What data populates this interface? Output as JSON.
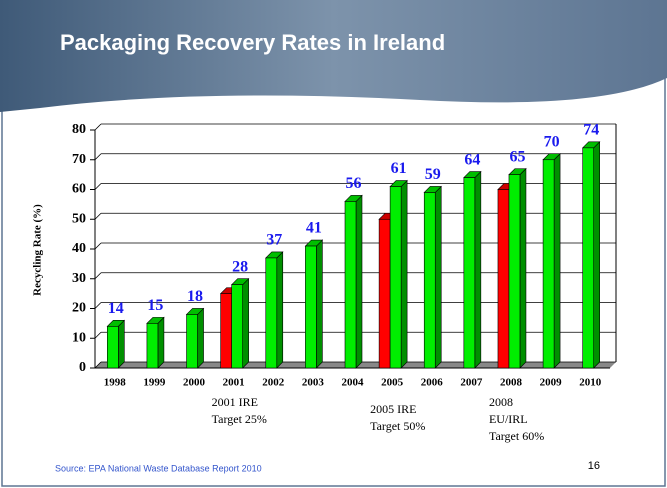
{
  "title": "Packaging Recovery Rates in Ireland",
  "source": "Source: EPA National Waste Database Report 2010",
  "page_number": "16",
  "chart_data": {
    "type": "bar3d",
    "ylabel": "Recycling Rate (%)",
    "categories": [
      "1998",
      "1999",
      "2000",
      "2001",
      "2002",
      "2003",
      "2004",
      "2005",
      "2006",
      "2007",
      "2008",
      "2009",
      "2010"
    ],
    "series": [
      {
        "color": "#00ee00",
        "values": [
          14,
          15,
          18,
          28,
          37,
          41,
          56,
          61,
          59,
          64,
          65,
          70,
          74
        ]
      },
      {
        "color": "#ff0000",
        "values": [
          null,
          null,
          null,
          25,
          null,
          null,
          null,
          50,
          null,
          null,
          60,
          null,
          null
        ]
      }
    ],
    "ylim": [
      0,
      80
    ],
    "yticks": [
      0,
      10,
      20,
      30,
      40,
      50,
      60,
      70,
      80
    ],
    "grid": true,
    "annotations": [
      {
        "lines": [
          "2001 IRE",
          "Target 25%"
        ]
      },
      {
        "lines": [
          "2005 IRE",
          "Target 50%"
        ]
      },
      {
        "lines": [
          "2008",
          "EU/IRL",
          "Target 60%"
        ]
      }
    ]
  }
}
